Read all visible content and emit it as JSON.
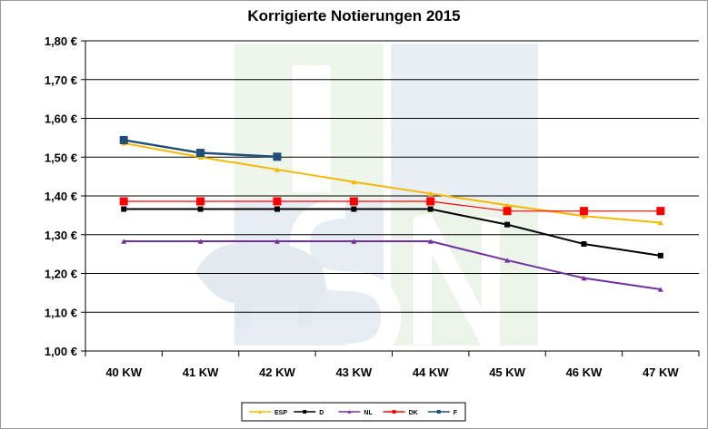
{
  "chart_data": {
    "type": "line",
    "title": "Korrigierte Notierungen 2015",
    "xlabel": "",
    "ylabel": "",
    "categories": [
      "40 KW",
      "41 KW",
      "42 KW",
      "43 KW",
      "44 KW",
      "45 KW",
      "46 KW",
      "47 KW"
    ],
    "y_ticks": [
      "1,00 €",
      "1,10 €",
      "1,20 €",
      "1,30 €",
      "1,40 €",
      "1,50 €",
      "1,60 €",
      "1,70 €",
      "1,80 €"
    ],
    "ylim": [
      1.0,
      1.8
    ],
    "grid": "horizontal",
    "legend_position": "bottom",
    "series": [
      {
        "name": "ESP",
        "color": "#f5b800",
        "marker": "triangle",
        "values": [
          1.536,
          1.5,
          1.468,
          1.436,
          1.406,
          1.376,
          1.348,
          1.331
        ]
      },
      {
        "name": "D",
        "color": "#000000",
        "marker": "square",
        "values": [
          1.366,
          1.366,
          1.366,
          1.366,
          1.366,
          1.326,
          1.276,
          1.246
        ]
      },
      {
        "name": "NL",
        "color": "#7030a0",
        "marker": "triangle",
        "values": [
          1.283,
          1.283,
          1.283,
          1.283,
          1.283,
          1.234,
          1.188,
          1.159
        ]
      },
      {
        "name": "DK",
        "color": "#ff0000",
        "marker": "square",
        "values": [
          1.386,
          1.386,
          1.386,
          1.386,
          1.386,
          1.361,
          1.361,
          1.361
        ]
      },
      {
        "name": "F",
        "color": "#1f4e79",
        "marker": "square",
        "values": [
          1.544,
          1.511,
          1.501,
          null,
          null,
          null,
          null,
          null
        ]
      }
    ]
  }
}
